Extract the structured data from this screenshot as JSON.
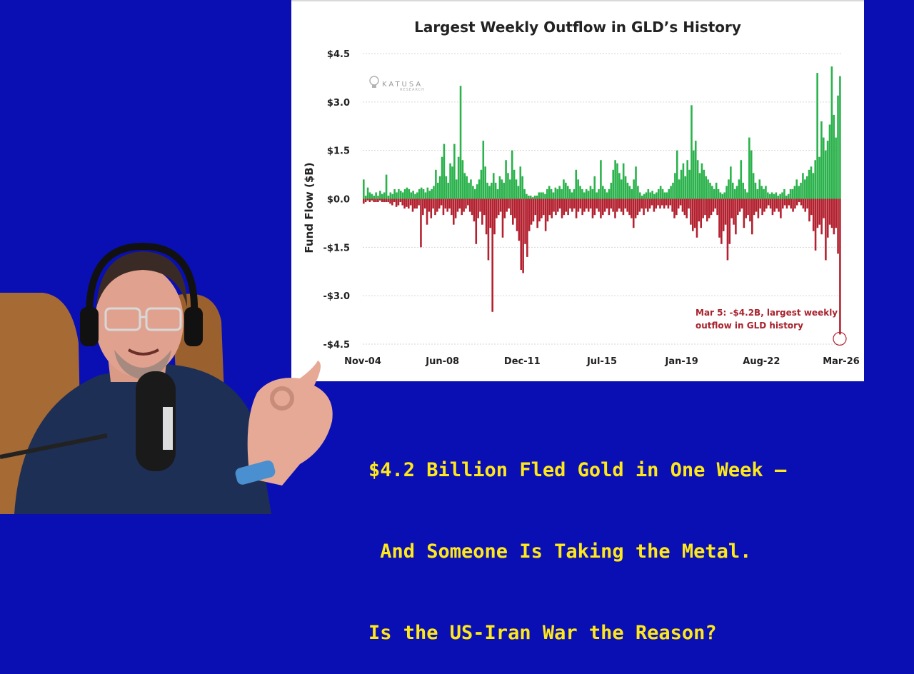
{
  "chart_data": {
    "type": "bar",
    "title": "Largest Weekly Outflow in GLD’s History",
    "ylabel": "Fund Flow ($B)",
    "ylim": [
      -4.5,
      4.5
    ],
    "yticks": [
      "$4.5",
      "$3.0",
      "$1.5",
      "$0.0",
      "-$1.5",
      "-$3.0",
      "-$4.5"
    ],
    "xticks": [
      "Nov-04",
      "Jun-08",
      "Dec-11",
      "Jul-15",
      "Jan-19",
      "Aug-22",
      "Mar-26"
    ],
    "grid": true,
    "series": [
      {
        "color": "#2bb24c",
        "values": [
          0.6,
          0.1,
          0.35,
          0.2,
          0.15,
          0.1,
          0.2,
          0.1,
          0.25,
          0.15,
          0.2,
          0.75,
          0.1,
          0.2,
          0.15,
          0.3,
          0.2,
          0.3,
          0.25,
          0.2,
          0.3,
          0.35,
          0.3,
          0.2,
          0.25,
          0.15,
          0.2,
          0.3,
          0.35,
          0.3,
          0.2,
          0.35,
          0.25,
          0.3,
          0.4,
          0.9,
          0.5,
          0.7,
          1.3,
          1.7,
          0.7,
          0.5,
          1.1,
          1.0,
          1.7,
          0.6,
          1.3,
          3.5,
          1.2,
          0.8,
          0.7,
          0.5,
          0.6,
          0.4,
          0.3,
          0.45,
          0.6,
          0.9,
          1.8,
          1.0,
          0.5,
          0.4,
          0.5,
          0.8,
          0.5,
          0.3,
          0.7,
          0.6,
          0.5,
          1.2,
          0.8,
          0.6,
          1.5,
          0.9,
          0.6,
          0.4,
          1.0,
          0.7,
          0.3,
          0.15,
          0.1,
          0.1,
          0.05,
          0.1,
          0.1,
          0.2,
          0.2,
          0.2,
          0.15,
          0.3,
          0.4,
          0.3,
          0.2,
          0.35,
          0.3,
          0.4,
          0.3,
          0.6,
          0.5,
          0.4,
          0.3,
          0.2,
          0.3,
          0.9,
          0.6,
          0.4,
          0.3,
          0.2,
          0.3,
          0.25,
          0.4,
          0.3,
          0.7,
          0.2,
          0.3,
          1.2,
          0.4,
          0.3,
          0.2,
          0.3,
          0.5,
          0.9,
          1.2,
          1.1,
          0.8,
          0.6,
          1.1,
          0.7,
          0.5,
          0.4,
          0.3,
          0.6,
          1.0,
          0.4,
          0.2,
          0.1,
          0.15,
          0.2,
          0.3,
          0.2,
          0.25,
          0.15,
          0.2,
          0.3,
          0.4,
          0.3,
          0.2,
          0.2,
          0.3,
          0.4,
          0.5,
          0.8,
          1.5,
          0.6,
          0.9,
          1.1,
          0.7,
          1.2,
          0.9,
          2.9,
          1.5,
          1.8,
          1.2,
          0.8,
          1.1,
          0.9,
          0.7,
          0.6,
          0.5,
          0.4,
          0.3,
          0.5,
          0.3,
          0.2,
          0.15,
          0.2,
          0.4,
          0.6,
          1.0,
          0.5,
          0.3,
          0.4,
          0.6,
          1.2,
          0.5,
          0.3,
          0.2,
          1.9,
          1.5,
          0.8,
          0.5,
          0.3,
          0.6,
          0.4,
          0.3,
          0.4,
          0.2,
          0.15,
          0.2,
          0.15,
          0.2,
          0.1,
          0.15,
          0.2,
          0.3,
          0.1,
          0.15,
          0.3,
          0.3,
          0.4,
          0.6,
          0.4,
          0.5,
          0.8,
          0.6,
          0.7,
          0.9,
          1.0,
          0.8,
          1.2,
          3.9,
          1.3,
          2.4,
          1.9,
          1.5,
          1.8,
          2.3,
          4.1,
          2.6,
          1.9,
          3.2,
          3.8
        ]
      },
      {
        "color": "#b3202f",
        "values": [
          -0.15,
          -0.1,
          -0.05,
          -0.1,
          -0.05,
          -0.1,
          -0.1,
          -0.1,
          -0.05,
          -0.1,
          -0.1,
          -0.1,
          -0.1,
          -0.15,
          -0.2,
          -0.1,
          -0.25,
          -0.2,
          -0.1,
          -0.2,
          -0.3,
          -0.25,
          -0.3,
          -0.2,
          -0.4,
          -0.3,
          -0.3,
          -0.2,
          -1.5,
          -0.5,
          -0.3,
          -0.8,
          -0.4,
          -0.6,
          -0.3,
          -0.5,
          -0.4,
          -0.3,
          -0.2,
          -0.5,
          -0.3,
          -0.4,
          -0.3,
          -0.5,
          -0.8,
          -0.6,
          -0.4,
          -0.3,
          -0.5,
          -0.4,
          -0.3,
          -0.2,
          -0.4,
          -0.5,
          -0.7,
          -1.4,
          -0.6,
          -0.4,
          -0.8,
          -0.5,
          -1.1,
          -1.9,
          -0.9,
          -3.5,
          -1.1,
          -0.6,
          -0.5,
          -0.4,
          -1.2,
          -0.6,
          -0.4,
          -0.3,
          -0.5,
          -0.8,
          -0.6,
          -1.0,
          -1.3,
          -2.2,
          -2.3,
          -1.4,
          -1.8,
          -1.0,
          -0.8,
          -0.7,
          -0.5,
          -0.9,
          -0.7,
          -0.6,
          -0.5,
          -1.0,
          -0.7,
          -0.5,
          -0.6,
          -0.4,
          -0.5,
          -0.4,
          -0.3,
          -0.6,
          -0.5,
          -0.4,
          -0.5,
          -0.3,
          -0.4,
          -0.3,
          -0.6,
          -0.4,
          -0.3,
          -0.5,
          -0.4,
          -0.3,
          -0.4,
          -0.3,
          -0.6,
          -0.5,
          -0.3,
          -0.4,
          -0.6,
          -0.5,
          -0.4,
          -0.3,
          -0.5,
          -0.3,
          -0.4,
          -0.6,
          -0.4,
          -0.3,
          -0.4,
          -0.5,
          -0.3,
          -0.4,
          -0.5,
          -0.6,
          -0.9,
          -0.6,
          -0.5,
          -0.4,
          -0.3,
          -0.5,
          -0.3,
          -0.4,
          -0.3,
          -0.2,
          -0.4,
          -0.3,
          -0.2,
          -0.3,
          -0.2,
          -0.3,
          -0.2,
          -0.3,
          -0.2,
          -0.4,
          -0.6,
          -0.5,
          -0.3,
          -0.2,
          -0.4,
          -0.5,
          -0.6,
          -0.3,
          -0.8,
          -1.0,
          -0.9,
          -1.2,
          -0.7,
          -0.9,
          -0.6,
          -0.5,
          -0.7,
          -0.6,
          -0.5,
          -0.4,
          -0.3,
          -0.5,
          -1.2,
          -1.4,
          -1.0,
          -0.8,
          -1.9,
          -1.4,
          -0.6,
          -0.8,
          -1.1,
          -0.5,
          -0.4,
          -0.3,
          -0.9,
          -0.6,
          -0.5,
          -0.7,
          -1.1,
          -0.5,
          -0.4,
          -0.6,
          -0.3,
          -0.5,
          -0.4,
          -0.3,
          -0.2,
          -0.3,
          -0.5,
          -0.4,
          -0.3,
          -0.4,
          -0.6,
          -0.3,
          -0.2,
          -0.3,
          -0.2,
          -0.3,
          -0.4,
          -0.3,
          -0.2,
          -0.1,
          -0.2,
          -0.3,
          -0.4,
          -0.3,
          -0.7,
          -0.5,
          -1.0,
          -1.6,
          -0.9,
          -0.8,
          -1.1,
          -0.6,
          -1.9,
          -1.2,
          -0.8,
          -0.9,
          -1.1,
          -0.9,
          -1.7,
          -4.2
        ]
      }
    ],
    "annotation": {
      "line1": "Mar 5: -$4.2B, largest weekly",
      "line2": "outflow in GLD history",
      "value": -4.2,
      "color": "#b3202f"
    },
    "watermark": {
      "text": "KATUSA",
      "subtext": "RESEARCH"
    }
  },
  "caption": {
    "line1": "$4.2 Billion Fled Gold in One Week —",
    "line2": " And Someone Is Taking the Metal.",
    "line3": "Is the US-Iran War the Reason?"
  },
  "colors": {
    "background": "#0a0fb4",
    "caption": "#ffe81a",
    "inflow": "#2bb24c",
    "outflow": "#b3202f"
  }
}
